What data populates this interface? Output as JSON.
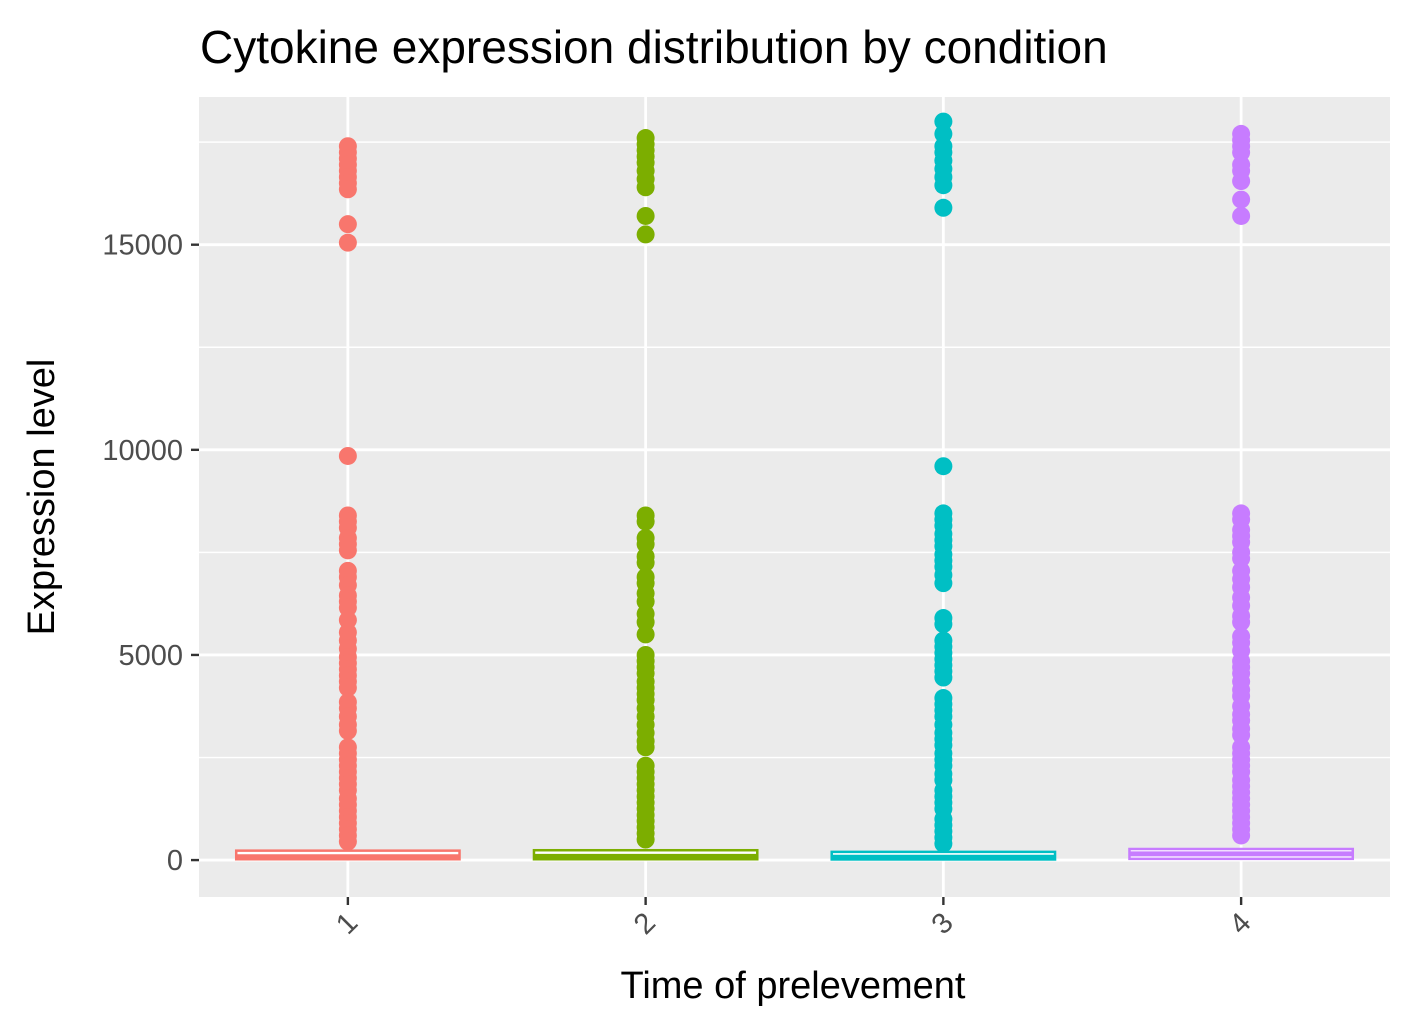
{
  "chart_data": {
    "type": "boxplot",
    "title": "Cytokine expression distribution by condition",
    "xlabel": "Time of prelevement",
    "ylabel": "Expression level",
    "categories": [
      "1",
      "2",
      "3",
      "4"
    ],
    "x_tick_rotation_deg": -45,
    "ylim": [
      -900,
      18600
    ],
    "y_ticks": [
      0,
      5000,
      10000,
      15000
    ],
    "y_tick_labels": [
      "0",
      "5000",
      "10000",
      "15000"
    ],
    "grid": true,
    "legend": "none",
    "panel_color": "#ebebeb",
    "grid_color": "#ffffff",
    "colors": [
      "#F8766D",
      "#7CAE00",
      "#00BFC4",
      "#C77CFF"
    ],
    "series": [
      {
        "category": "1",
        "box": {
          "q1": 20,
          "median": 80,
          "q3": 230
        },
        "outliers": [
          17400,
          17250,
          17100,
          16950,
          16800,
          16650,
          16500,
          16350,
          15500,
          15050,
          9850,
          8400,
          8250,
          8100,
          7850,
          7700,
          7550,
          7050,
          6900,
          6700,
          6450,
          6300,
          6150,
          5850,
          5550,
          5350,
          5150,
          4950,
          4800,
          4650,
          4500,
          4350,
          4200,
          3850,
          3700,
          3500,
          3300,
          3150,
          2750,
          2600,
          2450,
          2300,
          2150,
          2000,
          1850,
          1700,
          1500,
          1350,
          1200,
          1050,
          900,
          750,
          600,
          450
        ]
      },
      {
        "category": "2",
        "box": {
          "q1": 20,
          "median": 90,
          "q3": 240
        },
        "outliers": [
          17600,
          17450,
          17300,
          17150,
          17000,
          16800,
          16600,
          16400,
          15700,
          15250,
          8400,
          8250,
          7850,
          7700,
          7400,
          7250,
          6900,
          6750,
          6500,
          6300,
          6000,
          5800,
          5500,
          5000,
          4850,
          4700,
          4550,
          4350,
          4200,
          4050,
          3900,
          3700,
          3500,
          3300,
          3100,
          2900,
          2750,
          2300,
          2150,
          2000,
          1850,
          1700,
          1550,
          1400,
          1250,
          1100,
          950,
          800,
          650,
          500
        ]
      },
      {
        "category": "3",
        "box": {
          "q1": 15,
          "median": 70,
          "q3": 200
        },
        "outliers": [
          18000,
          17700,
          17400,
          17250,
          17050,
          16850,
          16650,
          16450,
          15900,
          9600,
          8450,
          8300,
          8150,
          7950,
          7800,
          7650,
          7450,
          7300,
          7150,
          6950,
          6750,
          5900,
          5750,
          5350,
          5200,
          5050,
          4900,
          4750,
          4600,
          4450,
          3950,
          3800,
          3650,
          3500,
          3300,
          3100,
          2950,
          2800,
          2600,
          2450,
          2300,
          2100,
          1950,
          1700,
          1550,
          1400,
          1250,
          1000,
          850,
          700,
          550,
          400
        ]
      },
      {
        "category": "4",
        "box": {
          "q1": 30,
          "median": 150,
          "q3": 270
        },
        "outliers": [
          17700,
          17550,
          17400,
          17250,
          16950,
          16800,
          16550,
          16100,
          15700,
          8450,
          8300,
          8050,
          7900,
          7750,
          7500,
          7350,
          7050,
          6850,
          6650,
          6400,
          6200,
          5950,
          5800,
          5450,
          5300,
          5100,
          4850,
          4700,
          4550,
          4350,
          4150,
          4000,
          3750,
          3550,
          3400,
          3200,
          3050,
          2750,
          2600,
          2450,
          2300,
          2150,
          1950,
          1800,
          1650,
          1500,
          1350,
          1200,
          1050,
          900,
          750,
          600
        ]
      }
    ]
  }
}
